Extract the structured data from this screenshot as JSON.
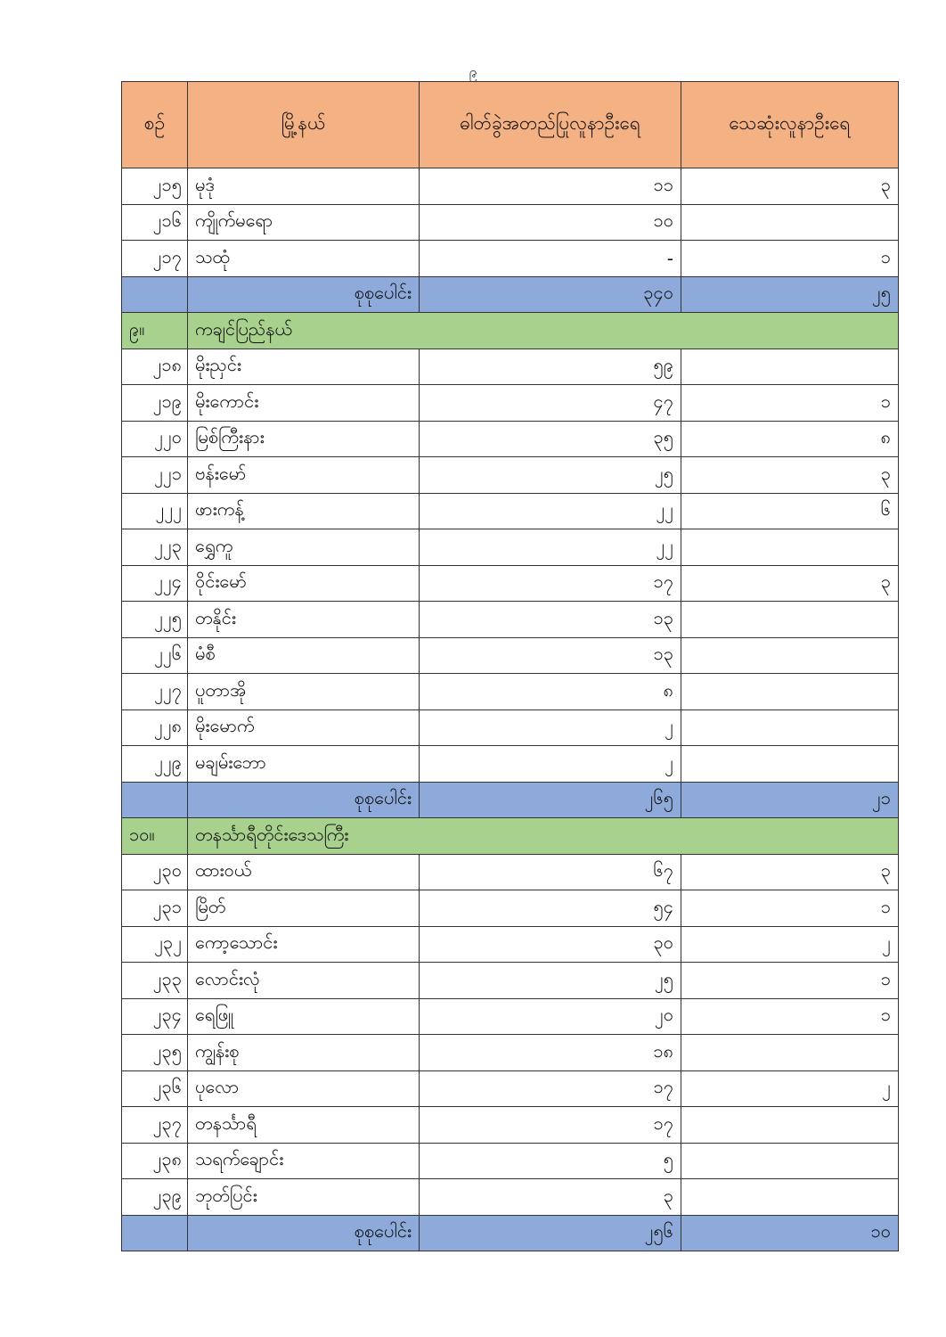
{
  "page_number": "၉",
  "colors": {
    "header": "#f4b183",
    "total_row": "#8eaadb",
    "section_row": "#a9d18e"
  },
  "headers": [
    "စဉ်",
    "မြို့နယ်",
    "ဓါတ်ခွဲအတည်ပြုလူနာဦးရေ",
    "သေဆုံးလူနာဦးရေ"
  ],
  "rows": [
    {
      "type": "row",
      "no": "၂၁၅",
      "name": "မုဒုံ",
      "confirmed": "၁၁",
      "deaths": "၃"
    },
    {
      "type": "row",
      "no": "၂၁၆",
      "name": "ကျိုက်မရော",
      "confirmed": "၁၀",
      "deaths": ""
    },
    {
      "type": "row",
      "no": "၂၁၇",
      "name": "သထုံ",
      "confirmed": "-",
      "deaths": "၁"
    },
    {
      "type": "total",
      "no": "",
      "name": "စုစုပေါင်း",
      "confirmed": "၃၄၀",
      "deaths": "၂၅"
    },
    {
      "type": "section",
      "no": "၉။",
      "name": "ကချင်ပြည်နယ်"
    },
    {
      "type": "row",
      "no": "၂၁၈",
      "name": "မိုးညှင်း",
      "confirmed": "၅၉",
      "deaths": ""
    },
    {
      "type": "row",
      "no": "၂၁၉",
      "name": "မိုးကောင်း",
      "confirmed": "၄၇",
      "deaths": "၁"
    },
    {
      "type": "row",
      "no": "၂၂၀",
      "name": "မြစ်ကြီးနား",
      "confirmed": "၃၅",
      "deaths": "၈"
    },
    {
      "type": "row",
      "no": "၂၂၁",
      "name": "ဗန်းမော်",
      "confirmed": "၂၅",
      "deaths": "၃"
    },
    {
      "type": "row",
      "no": "၂၂၂",
      "name": "ဖားကန့်",
      "confirmed": "၂၂",
      "deaths": "၆"
    },
    {
      "type": "row",
      "no": "၂၂၃",
      "name": "ရွှေကူ",
      "confirmed": "၂၂",
      "deaths": ""
    },
    {
      "type": "row",
      "no": "၂၂၄",
      "name": "ဝိုင်းမော်",
      "confirmed": "၁၇",
      "deaths": "၃"
    },
    {
      "type": "row",
      "no": "၂၂၅",
      "name": "တနိုင်း",
      "confirmed": "၁၃",
      "deaths": ""
    },
    {
      "type": "row",
      "no": "၂၂၆",
      "name": "မံစီ",
      "confirmed": "၁၃",
      "deaths": ""
    },
    {
      "type": "row",
      "no": "၂၂၇",
      "name": "ပူတာအို",
      "confirmed": "၈",
      "deaths": ""
    },
    {
      "type": "row",
      "no": "၂၂၈",
      "name": "မိုးမောက်",
      "confirmed": "၂",
      "deaths": ""
    },
    {
      "type": "row",
      "no": "၂၂၉",
      "name": "မချမ်းဘော",
      "confirmed": "၂",
      "deaths": ""
    },
    {
      "type": "total",
      "no": "",
      "name": "စုစုပေါင်း",
      "confirmed": "၂၆၅",
      "deaths": "၂၁"
    },
    {
      "type": "section",
      "no": "၁၀။",
      "name": "တနင်္သာရီတိုင်းဒေသကြီး"
    },
    {
      "type": "row",
      "no": "၂၃၀",
      "name": "ထားဝယ်",
      "confirmed": "၆၇",
      "deaths": "၃"
    },
    {
      "type": "row",
      "no": "၂၃၁",
      "name": "မြိတ်",
      "confirmed": "၅၄",
      "deaths": "၁"
    },
    {
      "type": "row",
      "no": "၂၃၂",
      "name": "ကော့သောင်း",
      "confirmed": "၃၀",
      "deaths": "၂"
    },
    {
      "type": "row",
      "no": "၂၃၃",
      "name": "လောင်းလုံ",
      "confirmed": "၂၅",
      "deaths": "၁"
    },
    {
      "type": "row",
      "no": "၂၃၄",
      "name": "ရေဖြူ",
      "confirmed": "၂၀",
      "deaths": "၁"
    },
    {
      "type": "row",
      "no": "၂၃၅",
      "name": "ကျွန်းစု",
      "confirmed": "၁၈",
      "deaths": ""
    },
    {
      "type": "row",
      "no": "၂၃၆",
      "name": "ပုလော",
      "confirmed": "၁၇",
      "deaths": "၂"
    },
    {
      "type": "row",
      "no": "၂၃၇",
      "name": "တနင်္သာရီ",
      "confirmed": "၁၇",
      "deaths": ""
    },
    {
      "type": "row",
      "no": "၂၃၈",
      "name": "သရက်ချောင်း",
      "confirmed": "၅",
      "deaths": ""
    },
    {
      "type": "row",
      "no": "၂၃၉",
      "name": "ဘုတ်ပြင်း",
      "confirmed": "၃",
      "deaths": ""
    },
    {
      "type": "total",
      "no": "",
      "name": "စုစုပေါင်း",
      "confirmed": "၂၅၆",
      "deaths": "၁၀"
    }
  ]
}
